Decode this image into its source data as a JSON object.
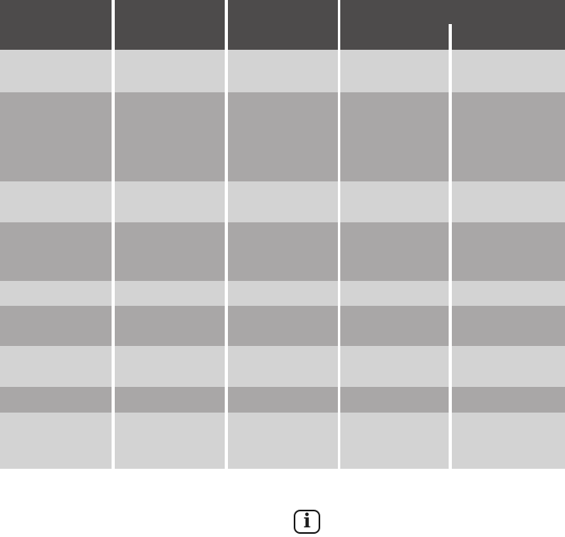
{
  "colors": {
    "page_bg": "#FFFFFF",
    "gap_color": "#FFFFFF",
    "header_bg": "#4D4B4B",
    "row_light": "#D3D3D3",
    "row_medium": "#A9A7A7",
    "icon_border": "#1A1A1A",
    "icon_glyph_color": "#1A1A1A"
  },
  "table": {
    "header_cells": [
      "",
      "",
      "",
      ""
    ],
    "rows": [
      {
        "cells": [
          "",
          "",
          "",
          "",
          ""
        ]
      },
      {
        "cells": [
          "",
          "",
          "",
          "",
          ""
        ]
      },
      {
        "cells": [
          "",
          "",
          "",
          "",
          ""
        ]
      },
      {
        "cells": [
          "",
          "",
          "",
          "",
          ""
        ]
      },
      {
        "cells": [
          "",
          "",
          "",
          "",
          ""
        ]
      },
      {
        "cells": [
          "",
          "",
          "",
          "",
          ""
        ]
      },
      {
        "cells": [
          "",
          "",
          "",
          "",
          ""
        ]
      },
      {
        "cells": [
          "",
          "",
          "",
          "",
          ""
        ]
      },
      {
        "cells": [
          "",
          "",
          "",
          "",
          ""
        ]
      }
    ]
  },
  "info_icon": {
    "glyph": "i"
  }
}
